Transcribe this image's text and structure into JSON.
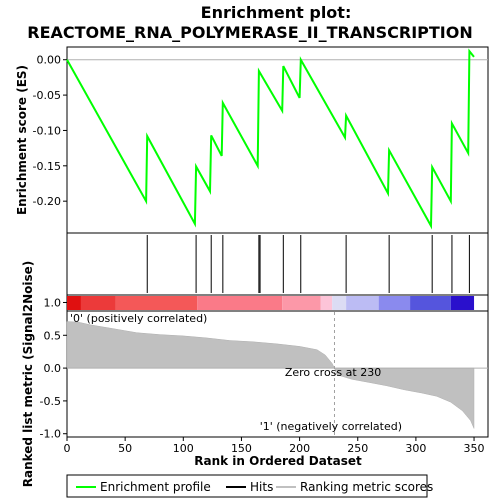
{
  "chart_data": {
    "type": "line",
    "title_line1": "Enrichment plot:",
    "title_line2": "REACTOME_RNA_POLYMERASE_II_TRANSCRIPTION",
    "x_axis": {
      "label": "Rank in Ordered Dataset",
      "range": [
        0,
        362
      ],
      "ticks": [
        "0",
        "50",
        "100",
        "150",
        "200",
        "250",
        "300",
        "350"
      ],
      "tick_values": [
        0,
        50,
        100,
        150,
        200,
        250,
        300,
        350
      ]
    },
    "es_panel": {
      "ylabel": "Enrichment score (ES)",
      "ylim": [
        -0.245,
        0.018
      ],
      "ticks": [
        "0.00",
        "-0.05",
        "-0.10",
        "-0.15",
        "-0.20"
      ],
      "tick_values": [
        0,
        -0.05,
        -0.1,
        -0.15,
        -0.2
      ],
      "color": "#00ff00",
      "points": [
        [
          0,
          0.0
        ],
        [
          68,
          -0.2
        ],
        [
          69,
          -0.108
        ],
        [
          110,
          -0.232
        ],
        [
          111,
          -0.151
        ],
        [
          123,
          -0.186
        ],
        [
          124,
          -0.107
        ],
        [
          133,
          -0.136
        ],
        [
          134,
          -0.061
        ],
        [
          164,
          -0.15
        ],
        [
          165,
          -0.016
        ],
        [
          185,
          -0.072
        ],
        [
          186,
          -0.009
        ],
        [
          200,
          -0.054
        ],
        [
          201,
          0.0
        ],
        [
          239,
          -0.11
        ],
        [
          240,
          -0.079
        ],
        [
          276,
          -0.189
        ],
        [
          277,
          -0.128
        ],
        [
          313,
          -0.235
        ],
        [
          314,
          -0.152
        ],
        [
          330,
          -0.2
        ],
        [
          331,
          -0.09
        ],
        [
          345,
          -0.132
        ],
        [
          346,
          0.012
        ],
        [
          350,
          0.004
        ]
      ]
    },
    "hits": [
      69,
      111,
      124,
      134,
      165,
      166,
      186,
      201,
      240,
      277,
      314,
      331,
      346
    ],
    "metric_panel": {
      "ylabel": "Ranked list metric (Signal2Noise)",
      "ylim": [
        -1.05,
        0.87
      ],
      "ticks": [
        "1.0",
        "0.5",
        "0.0",
        "-0.5",
        "-1.0"
      ],
      "tick_values": [
        1.0,
        0.5,
        0.0,
        -0.5,
        -1.0
      ],
      "curve_points": [
        [
          0,
          0.71
        ],
        [
          10,
          0.7
        ],
        [
          20,
          0.66
        ],
        [
          40,
          0.6
        ],
        [
          60,
          0.54
        ],
        [
          80,
          0.51
        ],
        [
          100,
          0.49
        ],
        [
          120,
          0.46
        ],
        [
          140,
          0.42
        ],
        [
          160,
          0.4
        ],
        [
          180,
          0.37
        ],
        [
          200,
          0.33
        ],
        [
          215,
          0.28
        ],
        [
          222,
          0.2
        ],
        [
          228,
          0.07
        ],
        [
          230,
          0.0
        ],
        [
          232,
          -0.1
        ],
        [
          245,
          -0.17
        ],
        [
          260,
          -0.22
        ],
        [
          275,
          -0.27
        ],
        [
          290,
          -0.33
        ],
        [
          305,
          -0.38
        ],
        [
          318,
          -0.43
        ],
        [
          330,
          -0.52
        ],
        [
          340,
          -0.65
        ],
        [
          347,
          -0.8
        ],
        [
          350,
          -0.92
        ]
      ],
      "zero_cross_rank": 230,
      "zero_cross_label": "Zero cross at 230",
      "pos_label": "'0' (positively correlated)",
      "neg_label": "'1' (negatively correlated)",
      "pos_color": "#cc0000",
      "neg_color": "#3333cc"
    },
    "color_bar": [
      {
        "start": 0,
        "end": 12,
        "color": "#e01010"
      },
      {
        "start": 12,
        "end": 42,
        "color": "#ec3a3a"
      },
      {
        "start": 42,
        "end": 112,
        "color": "#f45858"
      },
      {
        "start": 112,
        "end": 185,
        "color": "#fa7a88"
      },
      {
        "start": 185,
        "end": 218,
        "color": "#fc98a8"
      },
      {
        "start": 218,
        "end": 228,
        "color": "#fdc4d8"
      },
      {
        "start": 228,
        "end": 240,
        "color": "#dcdcf4"
      },
      {
        "start": 240,
        "end": 268,
        "color": "#bcbcf4"
      },
      {
        "start": 268,
        "end": 295,
        "color": "#8a8aee"
      },
      {
        "start": 295,
        "end": 330,
        "color": "#5555dd"
      },
      {
        "start": 330,
        "end": 350,
        "color": "#2a10cc"
      }
    ],
    "legend": [
      {
        "label": "Enrichment profile",
        "color": "#00ff00"
      },
      {
        "label": "Hits",
        "color": "#000000"
      },
      {
        "label": "Ranking metric scores",
        "color": "#c0c0c0"
      }
    ]
  }
}
